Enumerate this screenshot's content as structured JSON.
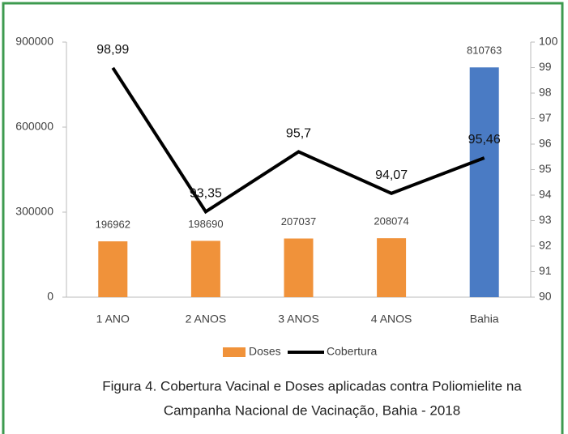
{
  "chart_data": {
    "type": "bar_line",
    "categories": [
      "1 ANO",
      "2 ANOS",
      "3 ANOS",
      "4 ANOS",
      "Bahia"
    ],
    "series": [
      {
        "name": "Doses",
        "type": "bar",
        "color": "#f0923a",
        "colors": [
          "#f0923a",
          "#f0923a",
          "#f0923a",
          "#f0923a",
          "#4a7bc4"
        ],
        "values": [
          196962,
          198690,
          207037,
          208074,
          810763
        ]
      },
      {
        "name": "Cobertura",
        "type": "line",
        "axis": "y2",
        "color": "#000000",
        "values": [
          98.99,
          93.35,
          95.7,
          94.07,
          95.46
        ],
        "value_labels": [
          "98,99",
          "93,35",
          "95,7",
          "94,07",
          "95,46"
        ]
      }
    ],
    "ylim": [
      0,
      900000
    ],
    "yticks": [
      0,
      300000,
      600000,
      900000
    ],
    "y2lim": [
      90,
      100
    ],
    "y2ticks": [
      90,
      91,
      92,
      93,
      94,
      95,
      96,
      97,
      98,
      99,
      100
    ],
    "legend": "bottom",
    "caption": [
      "Figura 4. Cobertura Vacinal e Doses aplicadas contra Poliomielite na",
      "Campanha Nacional de Vacinação, Bahia - 2018"
    ]
  }
}
